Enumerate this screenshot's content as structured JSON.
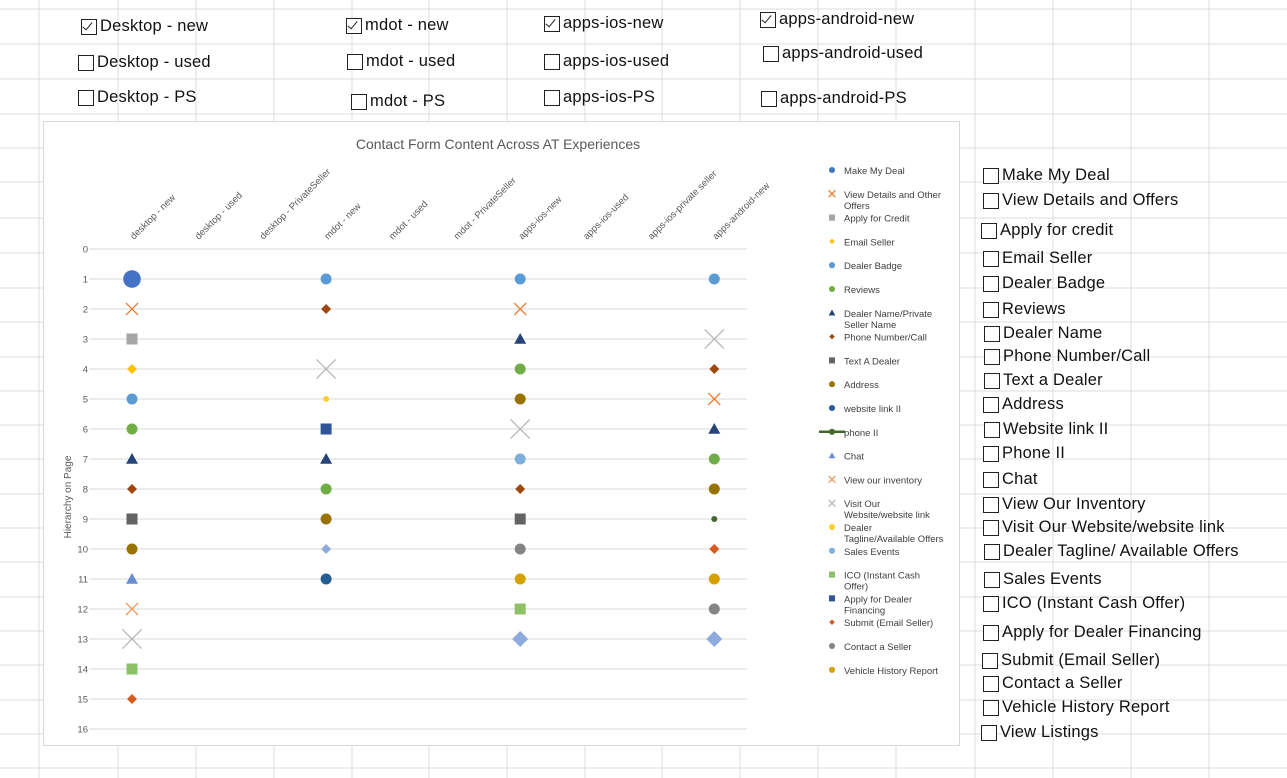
{
  "top_checkboxes": [
    {
      "label": "Desktop - new",
      "checked": true
    },
    {
      "label": "mdot - new",
      "checked": true
    },
    {
      "label": "apps-ios-new",
      "checked": true
    },
    {
      "label": "apps-android-new",
      "checked": true
    },
    {
      "label": "Desktop - used",
      "checked": false
    },
    {
      "label": "mdot - used",
      "checked": false
    },
    {
      "label": "apps-ios-used",
      "checked": false
    },
    {
      "label": "apps-android-used",
      "checked": false
    },
    {
      "label": "Desktop - PS",
      "checked": false
    },
    {
      "label": "mdot - PS",
      "checked": false
    },
    {
      "label": "apps-ios-PS",
      "checked": false
    },
    {
      "label": "apps-android-PS",
      "checked": false
    }
  ],
  "side_checkboxes": [
    {
      "label": "Make My Deal",
      "checked": false
    },
    {
      "label": "View Details and Offers",
      "checked": false
    },
    {
      "label": "Apply for credit",
      "checked": false
    },
    {
      "label": "Email Seller",
      "checked": false
    },
    {
      "label": "Dealer Badge",
      "checked": false
    },
    {
      "label": "Reviews",
      "checked": false
    },
    {
      "label": "Dealer Name",
      "checked": false
    },
    {
      "label": "Phone Number/Call",
      "checked": false
    },
    {
      "label": "Text a Dealer",
      "checked": false
    },
    {
      "label": "Address",
      "checked": false
    },
    {
      "label": "Website link II",
      "checked": false
    },
    {
      "label": "Phone II",
      "checked": false
    },
    {
      "label": "Chat",
      "checked": false
    },
    {
      "label": "View Our Inventory",
      "checked": false
    },
    {
      "label": "Visit Our Website/website link",
      "checked": false
    },
    {
      "label": "Dealer Tagline/ Available Offers",
      "checked": false
    },
    {
      "label": "Sales Events",
      "checked": false
    },
    {
      "label": "ICO (Instant Cash Offer)",
      "checked": false
    },
    {
      "label": "Apply for Dealer Financing",
      "checked": false
    },
    {
      "label": "Submit (Email Seller)",
      "checked": false
    },
    {
      "label": "Contact a Seller",
      "checked": false
    },
    {
      "label": "Vehicle History Report",
      "checked": false
    },
    {
      "label": "View Listings",
      "checked": false
    }
  ],
  "chart_data": {
    "type": "scatter",
    "title": "Contact Form Content Across AT Experiences",
    "ylabel": "Hierarchy on Page",
    "xlabel": "",
    "ylim": [
      0,
      16
    ],
    "y_reversed": true,
    "grid": true,
    "legend_position": "right",
    "categories": [
      "desktop - new",
      "desktop - used",
      "desktop - PrivateSeller",
      "mdot - new",
      "mdot - used",
      "mdot - PrivateSeller",
      "apps-ios-new",
      "apps-ios-used",
      "apps-ios-private seller",
      "apps-android-new"
    ],
    "y_ticks": [
      0,
      1,
      2,
      3,
      4,
      5,
      6,
      7,
      8,
      9,
      10,
      11,
      12,
      13,
      14,
      15,
      16
    ],
    "series": [
      {
        "name": "Make My Deal",
        "marker": "circle",
        "color": "#4472c4",
        "points": [
          {
            "x": "desktop - new",
            "y": 1,
            "size": "large"
          }
        ]
      },
      {
        "name": "View Details and Other Offers",
        "marker": "x",
        "color": "#ed7d31",
        "points": [
          {
            "x": "desktop - new",
            "y": 2
          },
          {
            "x": "apps-ios-new",
            "y": 2
          },
          {
            "x": "apps-android-new",
            "y": 5
          }
        ]
      },
      {
        "name": "Apply for Credit",
        "marker": "square",
        "color": "#a5a5a5",
        "points": [
          {
            "x": "desktop - new",
            "y": 3
          }
        ]
      },
      {
        "name": "Email Seller",
        "marker": "diamond",
        "color": "#ffc000",
        "points": [
          {
            "x": "desktop - new",
            "y": 4
          }
        ]
      },
      {
        "name": "Dealer Badge",
        "marker": "circle",
        "color": "#5b9bd5",
        "points": [
          {
            "x": "desktop - new",
            "y": 5
          },
          {
            "x": "mdot - new",
            "y": 1
          },
          {
            "x": "apps-ios-new",
            "y": 1
          },
          {
            "x": "apps-android-new",
            "y": 1
          }
        ]
      },
      {
        "name": "Reviews",
        "marker": "circle",
        "color": "#70ad47",
        "points": [
          {
            "x": "desktop - new",
            "y": 6
          },
          {
            "x": "mdot - new",
            "y": 8
          },
          {
            "x": "apps-ios-new",
            "y": 4
          },
          {
            "x": "apps-android-new",
            "y": 7
          }
        ]
      },
      {
        "name": "Dealer Name/Private Seller Name",
        "marker": "triangle",
        "color": "#264478",
        "points": [
          {
            "x": "desktop - new",
            "y": 7
          },
          {
            "x": "mdot - new",
            "y": 7
          },
          {
            "x": "apps-ios-new",
            "y": 3
          },
          {
            "x": "apps-android-new",
            "y": 6
          }
        ]
      },
      {
        "name": "Phone Number/Call",
        "marker": "diamond",
        "color": "#9e480e",
        "points": [
          {
            "x": "desktop - new",
            "y": 8
          },
          {
            "x": "mdot - new",
            "y": 2
          },
          {
            "x": "apps-ios-new",
            "y": 8
          },
          {
            "x": "apps-android-new",
            "y": 4
          }
        ]
      },
      {
        "name": "Text A Dealer",
        "marker": "square",
        "color": "#636363",
        "points": [
          {
            "x": "desktop - new",
            "y": 9
          },
          {
            "x": "apps-ios-new",
            "y": 9
          }
        ]
      },
      {
        "name": "Address",
        "marker": "circle",
        "color": "#997300",
        "points": [
          {
            "x": "desktop - new",
            "y": 10
          },
          {
            "x": "mdot - new",
            "y": 9
          },
          {
            "x": "apps-ios-new",
            "y": 5
          },
          {
            "x": "apps-android-new",
            "y": 8
          }
        ]
      },
      {
        "name": "website link II",
        "marker": "circle",
        "color": "#255e91",
        "points": [
          {
            "x": "mdot - new",
            "y": 11
          }
        ]
      },
      {
        "name": "phone II",
        "marker": "circle-line",
        "color": "#43682b",
        "points": [
          {
            "x": "apps-android-new",
            "y": 9,
            "size": "small"
          }
        ]
      },
      {
        "name": "Chat",
        "marker": "triangle",
        "color": "#698ed0",
        "points": [
          {
            "x": "desktop - new",
            "y": 11
          }
        ]
      },
      {
        "name": "View our inventory",
        "marker": "x",
        "color": "#f1975a",
        "points": [
          {
            "x": "desktop - new",
            "y": 12
          }
        ]
      },
      {
        "name": "Visit Our Website/website link",
        "marker": "x",
        "color": "#b7b7b7",
        "points": [
          {
            "x": "desktop - new",
            "y": 13
          },
          {
            "x": "mdot - new",
            "y": 4
          },
          {
            "x": "apps-ios-new",
            "y": 6
          },
          {
            "x": "apps-android-new",
            "y": 3
          }
        ]
      },
      {
        "name": "Dealer Tagline/Available Offers",
        "marker": "circle",
        "color": "#ffcd33",
        "points": [
          {
            "x": "mdot - new",
            "y": 5,
            "size": "small"
          }
        ]
      },
      {
        "name": "Sales Events",
        "marker": "circle",
        "color": "#7cafdd",
        "points": [
          {
            "x": "apps-ios-new",
            "y": 7
          }
        ]
      },
      {
        "name": "ICO (Instant Cash Offer)",
        "marker": "square",
        "color": "#8cc168",
        "points": [
          {
            "x": "desktop - new",
            "y": 14
          },
          {
            "x": "apps-ios-new",
            "y": 12
          }
        ]
      },
      {
        "name": "Apply for Dealer Financing",
        "marker": "square",
        "color": "#2f5597",
        "points": [
          {
            "x": "mdot - new",
            "y": 6
          }
        ]
      },
      {
        "name": "Submit (Email Seller)",
        "marker": "diamond",
        "color": "#d55a1e",
        "points": [
          {
            "x": "desktop - new",
            "y": 15
          },
          {
            "x": "apps-android-new",
            "y": 10
          }
        ]
      },
      {
        "name": "Contact a Seller",
        "marker": "circle",
        "color": "#848484",
        "points": [
          {
            "x": "apps-ios-new",
            "y": 10
          },
          {
            "x": "apps-android-new",
            "y": 12
          }
        ]
      },
      {
        "name": "Vehicle History Report",
        "marker": "circle",
        "color": "#d6a000",
        "points": [
          {
            "x": "apps-ios-new",
            "y": 11
          },
          {
            "x": "apps-android-new",
            "y": 11
          }
        ]
      },
      {
        "name": "",
        "marker": "diamond",
        "color": "#8faadc",
        "points": [
          {
            "x": "mdot - new",
            "y": 10
          },
          {
            "x": "apps-ios-new",
            "y": 13
          },
          {
            "x": "apps-android-new",
            "y": 13
          }
        ]
      }
    ]
  }
}
